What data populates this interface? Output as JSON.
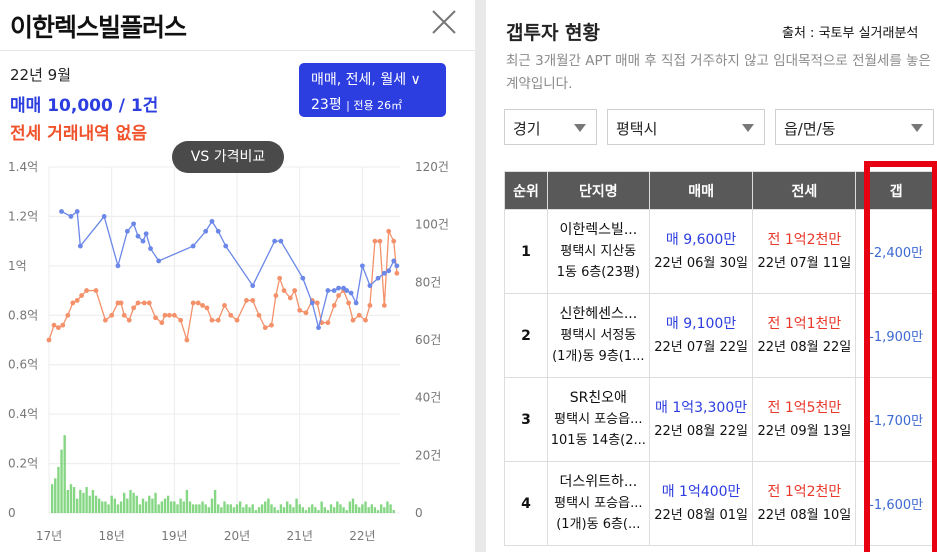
{
  "left_panel": {
    "title": "이한렉스빌플러스",
    "date": "22년 9월",
    "sale_info": "매매 10,000 / 1건",
    "rent_info": "전세 거래내역 없음",
    "filter_line1": "매매, 전세, 월세 ∨",
    "filter_size": "23평",
    "filter_area": "전용 26㎡",
    "vs_button": "VS 가격비교",
    "colors": {
      "accent_blue": "#2d3ee0",
      "accent_red": "#f0532b",
      "sale_line": "#6b87e8",
      "rent_line": "#f4916a",
      "volume_bar": "#5cc95b"
    }
  },
  "chart_data": {
    "type": "line",
    "x_tick_labels": [
      "17년",
      "18년",
      "19년",
      "20년",
      "21년",
      "22년"
    ],
    "y_left_tick_labels": [
      "1.4억",
      "1.2억",
      "1억",
      "0.8억",
      "0.6억",
      "0.4억",
      "0.2억",
      "0"
    ],
    "y_right_tick_labels": [
      "120건",
      "100건",
      "80건",
      "60건",
      "40건",
      "20건",
      "0"
    ],
    "ylim_left": [
      0,
      1.4
    ],
    "ylim_right": [
      0,
      120
    ],
    "xlim": [
      2017.0,
      2022.6
    ],
    "grid": true,
    "series": [
      {
        "x": [
          2017.2,
          2017.35,
          2017.45,
          2017.5,
          2017.88,
          2018.1,
          2018.25,
          2018.35,
          2018.42,
          2018.5,
          2018.55,
          2018.62,
          2018.75,
          2019.3,
          2019.5,
          2019.6,
          2019.7,
          2019.82,
          2020.25,
          2020.6,
          2020.7,
          2021.05,
          2021.2,
          2021.3,
          2021.45,
          2021.55,
          2021.62,
          2021.7,
          2021.75,
          2021.82,
          2021.9,
          2022.0,
          2022.12,
          2022.25,
          2022.35,
          2022.42,
          2022.5,
          2022.55
        ],
        "y": [
          1.22,
          1.2,
          1.22,
          1.08,
          1.2,
          1.0,
          1.14,
          1.17,
          1.12,
          1.1,
          1.13,
          1.07,
          1.02,
          1.08,
          1.14,
          1.18,
          1.14,
          1.08,
          0.92,
          1.1,
          1.1,
          0.95,
          0.85,
          0.75,
          0.9,
          0.9,
          0.91,
          0.91,
          0.9,
          0.89,
          0.85,
          1.0,
          0.92,
          0.95,
          0.97,
          0.98,
          1.02,
          1.0
        ]
      },
      {
        "x": [
          2017.0,
          2017.08,
          2017.15,
          2017.22,
          2017.3,
          2017.38,
          2017.45,
          2017.52,
          2017.6,
          2017.75,
          2017.9,
          2018.0,
          2018.1,
          2018.15,
          2018.2,
          2018.28,
          2018.35,
          2018.42,
          2018.52,
          2018.6,
          2018.7,
          2018.8,
          2018.85,
          2018.92,
          2019.0,
          2019.1,
          2019.2,
          2019.3,
          2019.38,
          2019.45,
          2019.52,
          2019.6,
          2019.7,
          2019.8,
          2019.9,
          2020.0,
          2020.15,
          2020.25,
          2020.35,
          2020.45,
          2020.55,
          2020.62,
          2020.68,
          2020.75,
          2020.85,
          2020.92,
          2021.0,
          2021.1,
          2021.2,
          2021.28,
          2021.35,
          2021.45,
          2021.55,
          2021.62,
          2021.7,
          2021.78,
          2021.85,
          2021.95,
          2022.05,
          2022.12,
          2022.2,
          2022.28,
          2022.35,
          2022.42,
          2022.5,
          2022.55
        ],
        "y": [
          0.7,
          0.76,
          0.75,
          0.76,
          0.8,
          0.85,
          0.86,
          0.88,
          0.9,
          0.9,
          0.78,
          0.8,
          0.85,
          0.85,
          0.8,
          0.78,
          0.83,
          0.85,
          0.85,
          0.85,
          0.79,
          0.77,
          0.8,
          0.8,
          0.8,
          0.78,
          0.7,
          0.85,
          0.85,
          0.84,
          0.83,
          0.78,
          0.78,
          0.84,
          0.8,
          0.78,
          0.86,
          0.86,
          0.8,
          0.75,
          0.76,
          0.88,
          0.95,
          0.9,
          0.87,
          0.9,
          0.82,
          0.81,
          0.86,
          0.85,
          0.77,
          0.77,
          0.84,
          0.88,
          0.9,
          0.85,
          0.78,
          0.8,
          0.78,
          0.84,
          1.1,
          1.1,
          0.84,
          1.14,
          1.1,
          0.97
        ]
      },
      {
        "x": [
          2017.05,
          2017.1,
          2017.15,
          2017.2,
          2017.25,
          2017.3,
          2017.35,
          2017.4,
          2017.45,
          2017.5,
          2017.55,
          2017.6,
          2017.65,
          2017.7,
          2017.75,
          2017.8,
          2017.85,
          2017.9,
          2017.95,
          2018.0,
          2018.05,
          2018.1,
          2018.15,
          2018.2,
          2018.25,
          2018.3,
          2018.35,
          2018.4,
          2018.45,
          2018.5,
          2018.55,
          2018.6,
          2018.65,
          2018.7,
          2018.75,
          2018.8,
          2018.85,
          2018.9,
          2018.95,
          2019.0,
          2019.05,
          2019.1,
          2019.15,
          2019.2,
          2019.25,
          2019.3,
          2019.35,
          2019.4,
          2019.45,
          2019.5,
          2019.55,
          2019.6,
          2019.65,
          2019.7,
          2019.75,
          2019.8,
          2019.85,
          2019.9,
          2019.95,
          2020.0,
          2020.05,
          2020.1,
          2020.15,
          2020.2,
          2020.25,
          2020.3,
          2020.35,
          2020.4,
          2020.45,
          2020.5,
          2020.55,
          2020.6,
          2020.65,
          2020.7,
          2020.75,
          2020.8,
          2020.85,
          2020.9,
          2020.95,
          2021.0,
          2021.05,
          2021.1,
          2021.15,
          2021.2,
          2021.25,
          2021.3,
          2021.35,
          2021.4,
          2021.45,
          2021.5,
          2021.55,
          2021.6,
          2021.65,
          2021.7,
          2021.75,
          2021.8,
          2021.85,
          2021.9,
          2021.95,
          2022.0,
          2022.05,
          2022.1,
          2022.15,
          2022.2,
          2022.25,
          2022.3,
          2022.35,
          2022.4,
          2022.45,
          2022.5
        ],
        "y": [
          10,
          12,
          16,
          22,
          27,
          8,
          10,
          9,
          5,
          8,
          7,
          9,
          6,
          8,
          6,
          5,
          4,
          4,
          3,
          6,
          5,
          3,
          4,
          7,
          5,
          8,
          7,
          6,
          3,
          5,
          4,
          6,
          5,
          7,
          3,
          4,
          5,
          6,
          4,
          4,
          3,
          5,
          4,
          8,
          4,
          3,
          3,
          3,
          4,
          3,
          2,
          5,
          8,
          3,
          2,
          4,
          3,
          3,
          2,
          3,
          4,
          2,
          3,
          2,
          3,
          1,
          2,
          3,
          4,
          5,
          3,
          2,
          1,
          3,
          2,
          4,
          3,
          2,
          5,
          3,
          2,
          1,
          2,
          3,
          2,
          1,
          4,
          2,
          1,
          3,
          2,
          4,
          3,
          2,
          1,
          4,
          5,
          3,
          2,
          3,
          4,
          2,
          3,
          2,
          1,
          3,
          2,
          4,
          3,
          1
        ]
      }
    ]
  },
  "right_panel": {
    "title": "갭투자 현황",
    "source": "출처 : 국토부 실거래분석",
    "description": "최근 3개월간 APT 매매 후 직접 거주하지 않고 임대목적으로 전월세를 놓은 계약입니다.",
    "dropdowns": [
      "경기",
      "평택시",
      "읍/면/동"
    ],
    "table": {
      "headers": [
        "순위",
        "단지명",
        "매매",
        "전세",
        "갭"
      ],
      "rows": [
        {
          "rank": "1",
          "name": "이한렉스빌...",
          "addr": "평택시 지산동",
          "unit": "1동 6층(23평)",
          "sale": "매 9,600만",
          "sale_date": "22년 06월 30일",
          "rent": "전 1억2천만",
          "rent_date": "22년 07월 11일",
          "gap": "-2,400만"
        },
        {
          "rank": "2",
          "name": "신한헤센스...",
          "addr": "평택시 서정동",
          "unit": "(1개)동 9층(1...",
          "sale": "매 9,100만",
          "sale_date": "22년 07월 22일",
          "rent": "전 1억1천만",
          "rent_date": "22년 08월 22일",
          "gap": "-1,900만"
        },
        {
          "rank": "3",
          "name": "SR친오애",
          "addr": "평택시 포승읍...",
          "unit": "101동 14층(2...",
          "sale": "매 1억3,300만",
          "sale_date": "22년 08월 22일",
          "rent": "전 1억5천만",
          "rent_date": "22년 09월 13일",
          "gap": "-1,700만"
        },
        {
          "rank": "4",
          "name": "더스위트하...",
          "addr": "평택시 포승읍...",
          "unit": "(1개)동 6층(...",
          "sale": "매 1억400만",
          "sale_date": "22년 08월 01일",
          "rent": "전 1억2천만",
          "rent_date": "22년 08월 10일",
          "gap": "-1,600만"
        }
      ]
    },
    "colors": {
      "header_bg": "#595959",
      "highlight_border": "#e60012",
      "gap_text": "#3c6ad0"
    }
  }
}
